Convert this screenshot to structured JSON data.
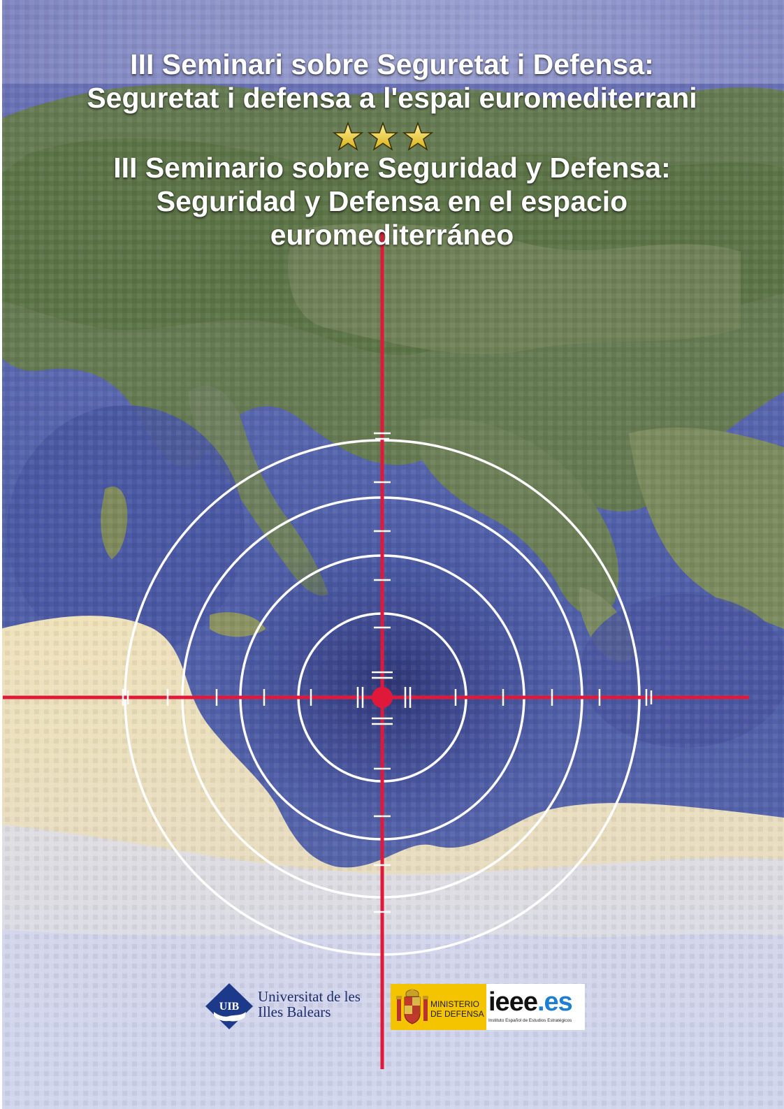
{
  "cover": {
    "title_catalan": [
      "III Seminari sobre Seguretat i Defensa:",
      "Seguretat i defensa a l'espai euromediterrani"
    ],
    "title_spanish": [
      "III Seminario sobre Seguridad y Defensa:",
      "Seguridad y Defensa en el espacio",
      "euromediterráneo"
    ],
    "separator_icon": "three-gold-stars-icon",
    "colors": {
      "crosshair_red": "#e0193a",
      "rings_white": "#ffffff",
      "star_gold": "#f2d21a",
      "uib_blue": "#1d3a8a",
      "ministerio_yellow": "#f5c400",
      "ieee_blue": "#1e7fd0"
    }
  },
  "logos": {
    "uib": {
      "emblem_text": "UIB",
      "name_line1": "Universitat de les",
      "name_line2": "Illes Balears"
    },
    "ministerio": {
      "line1": "MINISTERIO",
      "line2": "DE DEFENSA",
      "emblem": "spanish-coat-of-arms-icon"
    },
    "ieee": {
      "word_main": "ieee",
      "word_suffix": ".es",
      "subtitle": "Instituto Español de Estudios Estratégicos"
    }
  }
}
